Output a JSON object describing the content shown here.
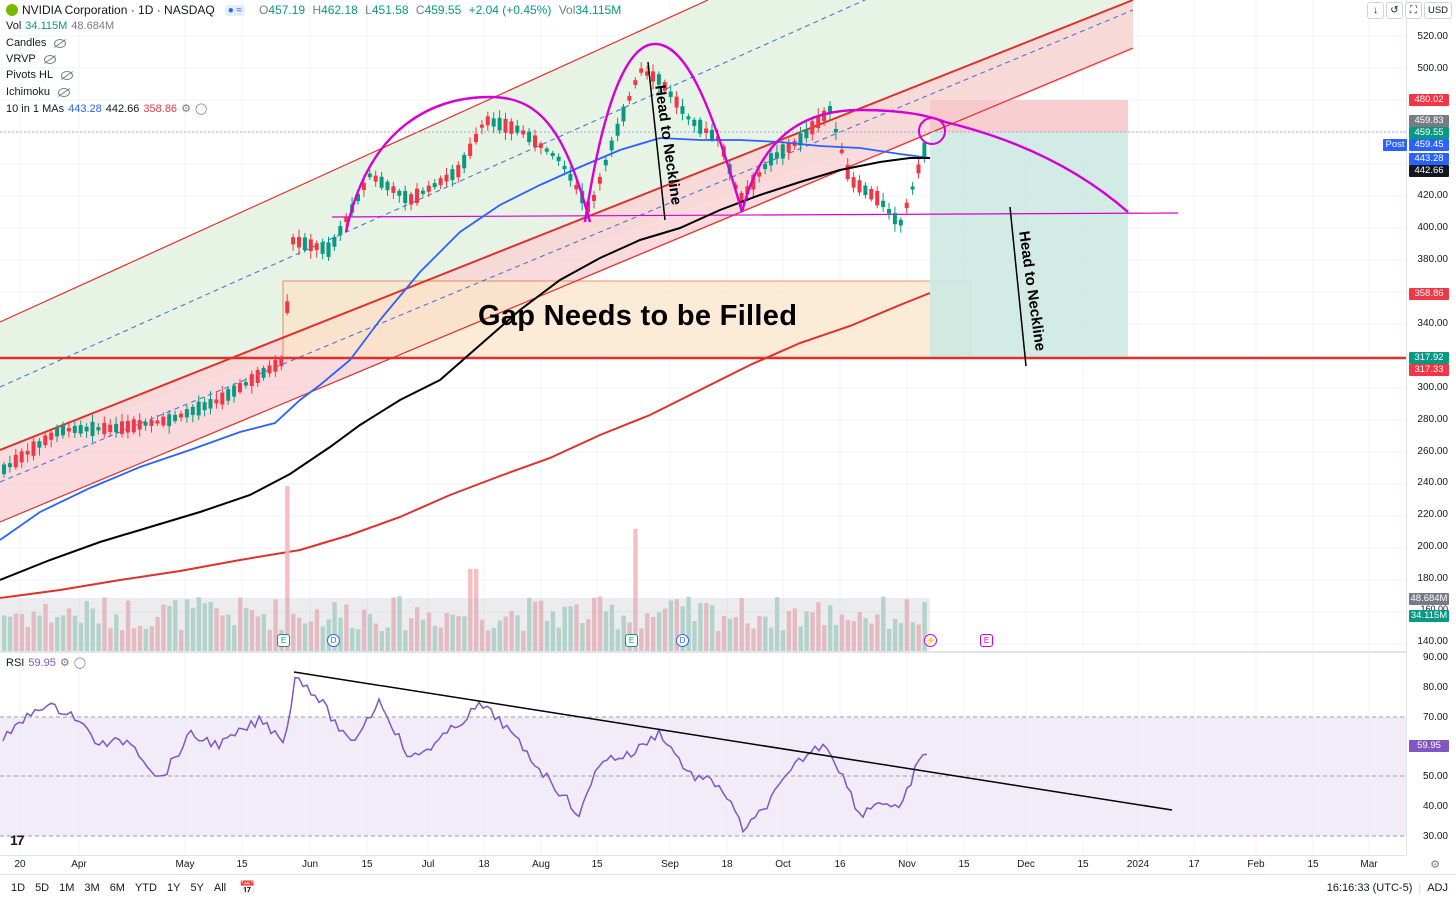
{
  "header": {
    "symbol_title": "NVIDIA Corporation · 1D · NASDAQ",
    "ohlc": {
      "o_label": "O",
      "o": "457.19",
      "h_label": "H",
      "h": "462.18",
      "l_label": "L",
      "l": "451.58",
      "c_label": "C",
      "c": "459.55",
      "change": "+2.04 (+0.45%)",
      "vol_label": "Vol",
      "vol": "34.115M"
    },
    "vol_row": {
      "label": "Vol",
      "v1": "34.115M",
      "v2": "48.684M"
    },
    "indicators": [
      "Candles",
      "VRVP",
      "Pivots HL",
      "Ichimoku"
    ],
    "ma_row": {
      "label": "10 in 1 MAs",
      "v1": "443.28",
      "v2": "442.66",
      "v3": "358.86"
    }
  },
  "toolbar_right": {
    "currency": "USD",
    "icons": [
      "arrow-down-icon",
      "reset-icon",
      "maximize-icon"
    ]
  },
  "price_axis": {
    "ticks": [
      "520.00",
      "500.00",
      "480.00",
      "440.00",
      "420.00",
      "400.00",
      "380.00",
      "340.00",
      "320.00",
      "300.00",
      "280.00",
      "260.00",
      "240.00",
      "220.00",
      "200.00",
      "180.00",
      "160.00",
      "140.00"
    ],
    "tags": {
      "t480": "480.02",
      "t459_83": "459.83",
      "t459_55": "459.55",
      "post_label": "Post",
      "t459_45": "459.45",
      "t443_28": "443.28",
      "t442_66": "442.66",
      "t358_86": "358.86",
      "t317_92": "317.92",
      "t317_33": "317.33",
      "vol1": "48.684M",
      "vol_mid": "160.00",
      "vol2": "34.115M"
    }
  },
  "rsi": {
    "label": "RSI",
    "value": "59.95",
    "ticks": [
      "90.00",
      "80.00",
      "70.00",
      "60.00",
      "50.00",
      "40.00",
      "30.00"
    ],
    "tag": "59.95"
  },
  "time_axis": [
    "20",
    "Apr",
    "May",
    "15",
    "Jun",
    "15",
    "Jul",
    "18",
    "Aug",
    "15",
    "Sep",
    "18",
    "Oct",
    "16",
    "Nov",
    "15",
    "Dec",
    "15",
    "2024",
    "17",
    "Feb",
    "15",
    "Mar"
  ],
  "annotations": {
    "gap": "Gap Needs to be Filled",
    "head_to_neckline_1": "Head to Neckline",
    "head_to_neckline_2": "Head to Neckline"
  },
  "events": [
    "E",
    "D",
    "E",
    "D",
    "E"
  ],
  "bottom_bar": {
    "ranges": [
      "1D",
      "5D",
      "1M",
      "3M",
      "6M",
      "YTD",
      "1Y",
      "5Y",
      "All"
    ],
    "time": "16:16:33 (UTC-5)",
    "adj": "ADJ"
  },
  "colors": {
    "up": "#089981",
    "down": "#f23645",
    "ma50": "#2962ff",
    "ma100": "#000000",
    "ma200": "#e0302b",
    "magenta": "#d500d5",
    "rsi_line": "#7e57c2"
  }
}
